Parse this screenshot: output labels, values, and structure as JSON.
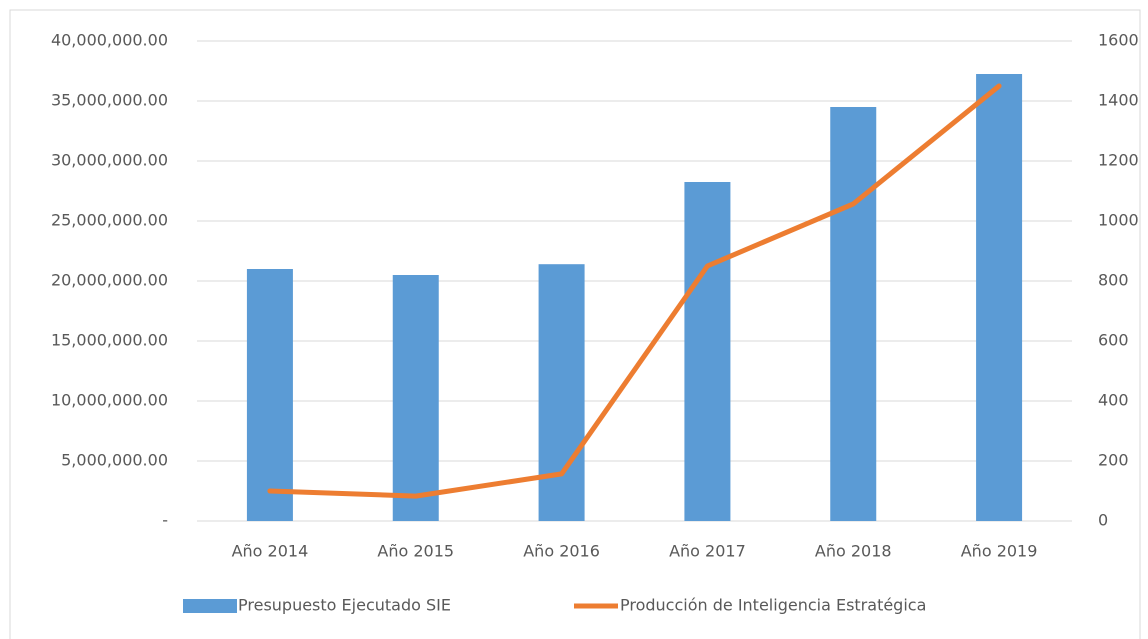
{
  "chart_data": {
    "type": "bar",
    "categories": [
      "Año 2014",
      "Año 2015",
      "Año 2016",
      "Año 2017",
      "Año 2018",
      "Año 2019"
    ],
    "series": [
      {
        "name": "Presupuesto Ejecutado SIE",
        "color": "#5b9bd5",
        "type": "bar",
        "values": [
          21000000,
          20500000,
          21400000,
          28250000,
          34500000,
          37250000
        ]
      },
      {
        "name": "Producción de Inteligencia Estratégica",
        "color": "#ed7d31",
        "type": "line",
        "axis": "y2",
        "values": [
          100,
          83,
          157,
          850,
          1057,
          1450
        ]
      }
    ],
    "ylim": [
      0,
      40000000
    ],
    "yticks": [
      {
        "value": 0,
        "label": "-"
      },
      {
        "value": 5000000,
        "label": "5,000,000.00"
      },
      {
        "value": 10000000,
        "label": "10,000,000.00"
      },
      {
        "value": 15000000,
        "label": "15,000,000.00"
      },
      {
        "value": 20000000,
        "label": "20,000,000.00"
      },
      {
        "value": 25000000,
        "label": "25,000,000.00"
      },
      {
        "value": 30000000,
        "label": "30,000,000.00"
      },
      {
        "value": 35000000,
        "label": "35,000,000.00"
      },
      {
        "value": 40000000,
        "label": "40,000,000.00"
      }
    ],
    "y2lim": [
      0,
      1600
    ],
    "y2ticks": [
      0,
      200,
      400,
      600,
      800,
      1000,
      1200,
      1400,
      1600
    ],
    "grid": true,
    "legend": "bottom"
  }
}
